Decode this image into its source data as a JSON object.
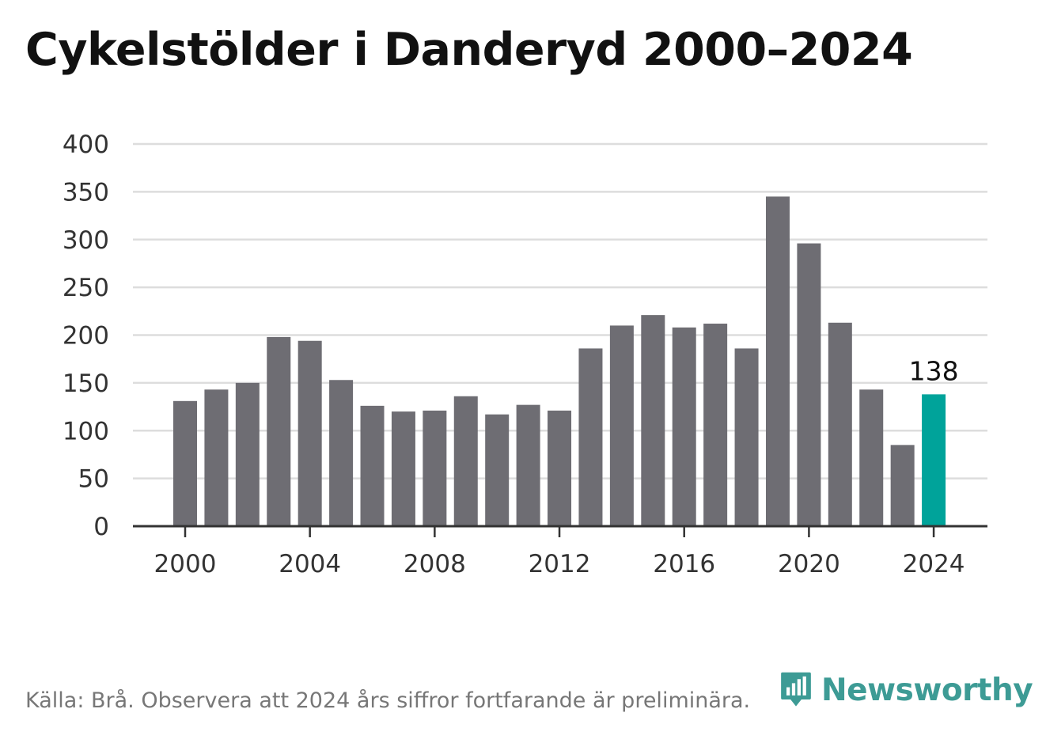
{
  "title": "Cykelstölder i Danderyd 2000–2024",
  "source": "Källa: Brå. Observera att 2024 års siffror fortfarande är preliminära.",
  "logo": {
    "text": "Newsworthy",
    "icon": "newsworthy-bar-icon"
  },
  "colors": {
    "bar": "#6e6d73",
    "highlight": "#00a39a",
    "grid": "#dddddd",
    "axis": "#333333",
    "logo": "#3d9b95"
  },
  "chart_data": {
    "type": "bar",
    "categories": [
      "2000",
      "2001",
      "2002",
      "2003",
      "2004",
      "2005",
      "2006",
      "2007",
      "2008",
      "2009",
      "2010",
      "2011",
      "2012",
      "2013",
      "2014",
      "2015",
      "2016",
      "2017",
      "2018",
      "2019",
      "2020",
      "2021",
      "2022",
      "2023",
      "2024"
    ],
    "values": [
      131,
      143,
      150,
      198,
      194,
      153,
      126,
      120,
      121,
      136,
      117,
      127,
      121,
      186,
      210,
      221,
      208,
      212,
      186,
      345,
      296,
      213,
      143,
      85,
      138
    ],
    "highlight_index": 24,
    "data_label": "138",
    "ylim": [
      0,
      400
    ],
    "yticks": [
      "0",
      "50",
      "100",
      "150",
      "200",
      "250",
      "300",
      "350",
      "400"
    ],
    "xticks": [
      "2000",
      "2004",
      "2008",
      "2012",
      "2016",
      "2020",
      "2024"
    ],
    "xlabel": "",
    "ylabel": "",
    "grid": true
  }
}
